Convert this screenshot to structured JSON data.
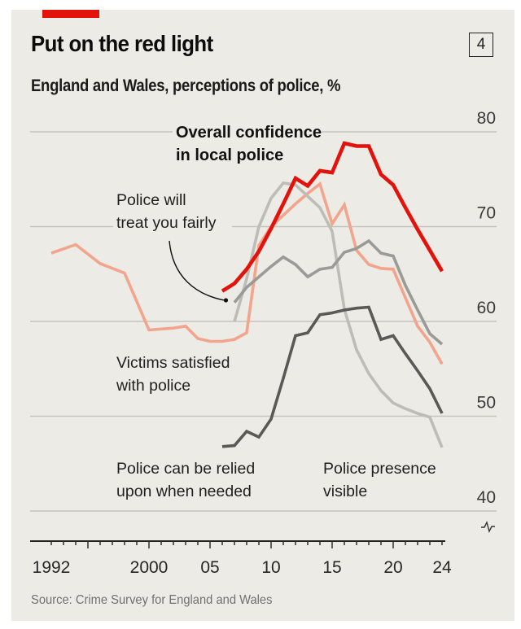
{
  "header": {
    "title": "Put on the red light",
    "chart_number": "4",
    "subtitle": "England and Wales, perceptions of police, %"
  },
  "footer": {
    "source": "Source: Crime Survey for England and Wales"
  },
  "colors": {
    "accent_red": "#e3120b",
    "background": "#ecebe5"
  },
  "chart_data": {
    "type": "line",
    "title": "Put on the red light",
    "subtitle": "England and Wales, perceptions of police, %",
    "xlabel": "",
    "ylabel": "%",
    "xlim": [
      1990,
      2024
    ],
    "ylim": [
      40,
      80
    ],
    "y_ticks": [
      80,
      70,
      60,
      50,
      40
    ],
    "y_tick_labels": [
      "80",
      "70",
      "60",
      "50",
      "40"
    ],
    "x_tick_years": [
      1992,
      2000,
      2005,
      2010,
      2015,
      2020,
      2024
    ],
    "x_tick_labels": [
      "1992",
      "2000",
      "05",
      "10",
      "15",
      "20",
      "24"
    ],
    "grid": true,
    "y_axis_position": "right",
    "axis_break": true,
    "series": [
      {
        "name": "Victims satisfied with police",
        "label_lines": [
          "Victims satisfied",
          "with police"
        ],
        "color": "#f2a58c",
        "x": [
          1992,
          1994,
          1996,
          1998,
          2000,
          2002,
          2003,
          2004,
          2005,
          2006,
          2007,
          2008,
          2009,
          2010,
          2011,
          2012,
          2013,
          2014,
          2015,
          2016,
          2017,
          2018,
          2019,
          2020,
          2021,
          2022,
          2023,
          2024
        ],
        "values": [
          67.2,
          68.1,
          66.1,
          65.1,
          59.1,
          59.3,
          59.5,
          58.2,
          57.9,
          57.9,
          58.1,
          58.8,
          68.0,
          70.0,
          71.2,
          72.4,
          73.5,
          74.5,
          70.3,
          72.3,
          67.5,
          66.0,
          65.6,
          65.5,
          62.5,
          59.5,
          57.8,
          55.5
        ]
      },
      {
        "name": "Police presence visible",
        "label_lines": [
          "Police presence",
          "visible"
        ],
        "color": "#bdbdb8",
        "x": [
          2007,
          2008,
          2009,
          2010,
          2011,
          2012,
          2013,
          2014,
          2015,
          2016,
          2017,
          2018,
          2019,
          2020,
          2021,
          2022,
          2023,
          2024
        ],
        "values": [
          60.0,
          64.5,
          70.0,
          73.0,
          74.6,
          74.4,
          73.2,
          72.0,
          69.5,
          61.3,
          57.0,
          54.5,
          52.7,
          51.4,
          50.8,
          50.3,
          49.9,
          46.7
        ]
      },
      {
        "name": "Police will treat you fairly",
        "label_lines": [
          "Police will",
          "treat you fairly"
        ],
        "color": "#9a9a96",
        "x": [
          2007,
          2008,
          2009,
          2010,
          2011,
          2012,
          2013,
          2014,
          2015,
          2016,
          2017,
          2018,
          2019,
          2020,
          2021,
          2022,
          2023,
          2024
        ],
        "values": [
          62.0,
          63.6,
          64.7,
          65.8,
          66.8,
          66.0,
          64.7,
          65.5,
          65.7,
          67.3,
          67.7,
          68.5,
          67.2,
          66.9,
          63.8,
          61.2,
          58.7,
          57.6
        ]
      },
      {
        "name": "Police can be relied upon when needed",
        "label_lines": [
          "Police can be relied",
          "upon when needed"
        ],
        "color": "#595957",
        "x": [
          2006,
          2007,
          2008,
          2009,
          2010,
          2011,
          2012,
          2013,
          2014,
          2015,
          2016,
          2017,
          2018,
          2019,
          2020,
          2021,
          2022,
          2023,
          2024
        ],
        "values": [
          46.8,
          46.9,
          48.4,
          47.8,
          49.7,
          54.0,
          58.5,
          58.8,
          60.7,
          60.9,
          61.2,
          61.4,
          61.5,
          58.1,
          58.5,
          56.6,
          54.8,
          52.9,
          50.3
        ]
      },
      {
        "name": "Overall confidence in local police",
        "label_lines": [
          "Overall confidence",
          "in local police"
        ],
        "color": "#e3120b",
        "x": [
          2006,
          2007,
          2008,
          2009,
          2010,
          2011,
          2012,
          2013,
          2014,
          2015,
          2016,
          2017,
          2018,
          2019,
          2020,
          2021,
          2022,
          2023,
          2024
        ],
        "values": [
          63.2,
          64.0,
          65.5,
          67.4,
          69.8,
          72.4,
          75.1,
          74.3,
          75.9,
          75.7,
          78.8,
          78.5,
          78.5,
          75.5,
          74.4,
          72.0,
          69.7,
          67.5,
          65.3
        ]
      }
    ],
    "annotations": [
      {
        "text": "Police will treat you fairly",
        "type": "arrow",
        "points_to_year": 2006.3
      }
    ]
  }
}
